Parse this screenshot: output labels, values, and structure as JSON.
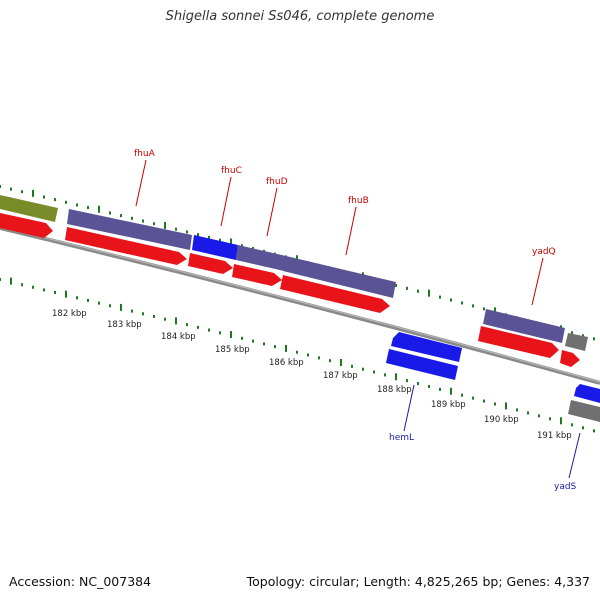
{
  "title": "Shigella sonnei Ss046, complete genome",
  "footer": {
    "accession": "Accession: NC_007384",
    "summary": "Topology: circular; Length: 4,825,265 bp; Genes: 4,337"
  },
  "colors": {
    "cds": "#e8141a",
    "gene": "#5a5496",
    "gene_minus": "#1a1ae8",
    "rrna": "#7a8c2a",
    "pseudo": "#707070",
    "tick": "#1f7a1f",
    "backbone": "#8a8a8a",
    "label_plus": "#cc0000",
    "label_minus": "#1a1aaa",
    "scale_text": "#222222"
  },
  "scale_labels": [
    "182 kbp",
    "183 kbp",
    "184 kbp",
    "185 kbp",
    "186 kbp",
    "187 kbp",
    "188 kbp",
    "189 kbp",
    "190 kbp",
    "191 kbp"
  ],
  "gene_labels_plus": [
    "fhuA",
    "fhuC",
    "fhuD",
    "fhuB",
    "yadQ"
  ],
  "gene_labels_minus": [
    "hemL",
    "yadS"
  ]
}
